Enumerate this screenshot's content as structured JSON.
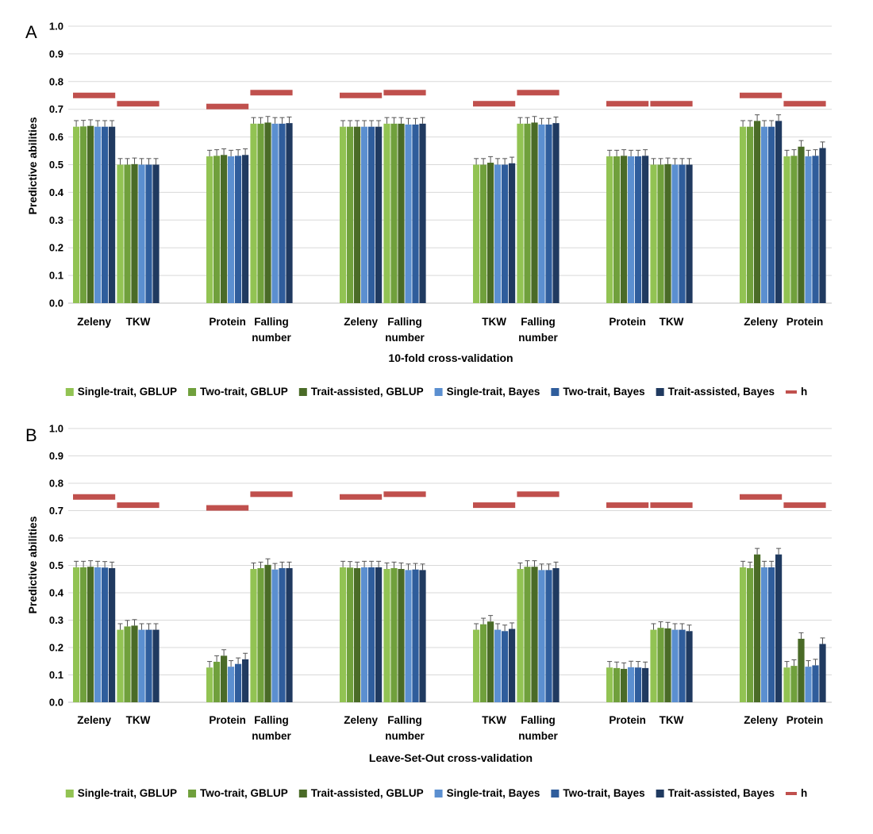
{
  "legend": {
    "entries": [
      {
        "label": "Single-trait, GBLUP",
        "color": "#92c353"
      },
      {
        "label": "Two-trait, GBLUP",
        "color": "#70a03c"
      },
      {
        "label": "Trait-assisted, GBLUP",
        "color": "#4a6b27"
      },
      {
        "label": "Single-trait, Bayes",
        "color": "#5b8fd0"
      },
      {
        "label": "Two-trait, Bayes",
        "color": "#2f5d9c"
      },
      {
        "label": "Trait-assisted, Bayes",
        "color": "#203a60"
      },
      {
        "label": "h",
        "color": "#c0504d"
      }
    ]
  },
  "chart_data": [
    {
      "type": "bar",
      "panel": "A",
      "xlabel": "10-fold cross-validation",
      "ylabel": "Predictive abilities",
      "ylim": [
        0,
        1.0
      ],
      "yticks": [
        "0.0",
        "0.1",
        "0.2",
        "0.3",
        "0.4",
        "0.5",
        "0.6",
        "0.7",
        "0.8",
        "0.9",
        "1.0"
      ],
      "grid": true,
      "legend_position": "bottom",
      "groups": [
        {
          "pair": [
            {
              "label": [
                "Zeleny"
              ],
              "values": [
                0.637,
                0.638,
                0.64,
                0.637,
                0.637,
                0.637
              ],
              "h": 0.75
            },
            {
              "label": [
                "TKW"
              ],
              "values": [
                0.5,
                0.5,
                0.502,
                0.5,
                0.5,
                0.5
              ],
              "h": 0.72
            }
          ]
        },
        {
          "pair": [
            {
              "label": [
                "Protein"
              ],
              "values": [
                0.53,
                0.532,
                0.535,
                0.53,
                0.532,
                0.535
              ],
              "h": 0.71
            },
            {
              "label": [
                "Falling",
                "number"
              ],
              "values": [
                0.648,
                0.648,
                0.652,
                0.648,
                0.648,
                0.65
              ],
              "h": 0.76
            }
          ]
        },
        {
          "pair": [
            {
              "label": [
                "Zeleny"
              ],
              "values": [
                0.637,
                0.637,
                0.637,
                0.637,
                0.637,
                0.637
              ],
              "h": 0.75
            },
            {
              "label": [
                "Falling",
                "number"
              ],
              "values": [
                0.648,
                0.648,
                0.648,
                0.645,
                0.645,
                0.648
              ],
              "h": 0.76
            }
          ]
        },
        {
          "pair": [
            {
              "label": [
                "TKW"
              ],
              "values": [
                0.5,
                0.5,
                0.507,
                0.5,
                0.5,
                0.505
              ],
              "h": 0.72
            },
            {
              "label": [
                "Falling",
                "number"
              ],
              "values": [
                0.648,
                0.648,
                0.652,
                0.645,
                0.645,
                0.65
              ],
              "h": 0.76
            }
          ]
        },
        {
          "pair": [
            {
              "label": [
                "Protein"
              ],
              "values": [
                0.53,
                0.53,
                0.532,
                0.53,
                0.53,
                0.532
              ],
              "h": 0.72
            },
            {
              "label": [
                "TKW"
              ],
              "values": [
                0.5,
                0.5,
                0.502,
                0.5,
                0.5,
                0.5
              ],
              "h": 0.72
            }
          ]
        },
        {
          "pair": [
            {
              "label": [
                "Zeleny"
              ],
              "values": [
                0.637,
                0.637,
                0.658,
                0.637,
                0.637,
                0.658
              ],
              "h": 0.75
            },
            {
              "label": [
                "Protein"
              ],
              "values": [
                0.53,
                0.532,
                0.565,
                0.53,
                0.532,
                0.56
              ],
              "h": 0.72
            }
          ]
        }
      ]
    },
    {
      "type": "bar",
      "panel": "B",
      "xlabel": "Leave-Set-Out cross-validation",
      "ylabel": "Predictive abilities",
      "ylim": [
        0,
        1.0
      ],
      "yticks": [
        "0.0",
        "0.1",
        "0.2",
        "0.3",
        "0.4",
        "0.5",
        "0.6",
        "0.7",
        "0.8",
        "0.9",
        "1.0"
      ],
      "grid": true,
      "legend_position": "bottom",
      "groups": [
        {
          "pair": [
            {
              "label": [
                "Zeleny"
              ],
              "values": [
                0.493,
                0.493,
                0.495,
                0.493,
                0.492,
                0.49
              ],
              "h": 0.75
            },
            {
              "label": [
                "TKW"
              ],
              "values": [
                0.265,
                0.277,
                0.28,
                0.265,
                0.265,
                0.265
              ],
              "h": 0.72
            }
          ]
        },
        {
          "pair": [
            {
              "label": [
                "Protein"
              ],
              "values": [
                0.127,
                0.148,
                0.17,
                0.13,
                0.14,
                0.157
              ],
              "h": 0.71
            },
            {
              "label": [
                "Falling",
                "number"
              ],
              "values": [
                0.487,
                0.49,
                0.502,
                0.485,
                0.49,
                0.49
              ],
              "h": 0.76
            }
          ]
        },
        {
          "pair": [
            {
              "label": [
                "Zeleny"
              ],
              "values": [
                0.493,
                0.492,
                0.49,
                0.493,
                0.493,
                0.493
              ],
              "h": 0.75
            },
            {
              "label": [
                "Falling",
                "number"
              ],
              "values": [
                0.487,
                0.49,
                0.487,
                0.483,
                0.485,
                0.483
              ],
              "h": 0.76
            }
          ]
        },
        {
          "pair": [
            {
              "label": [
                "TKW"
              ],
              "values": [
                0.265,
                0.285,
                0.295,
                0.265,
                0.26,
                0.268
              ],
              "h": 0.72
            },
            {
              "label": [
                "Falling",
                "number"
              ],
              "values": [
                0.487,
                0.495,
                0.495,
                0.483,
                0.483,
                0.49
              ],
              "h": 0.76
            }
          ]
        },
        {
          "pair": [
            {
              "label": [
                "Protein"
              ],
              "values": [
                0.127,
                0.125,
                0.122,
                0.128,
                0.127,
                0.125
              ],
              "h": 0.72
            },
            {
              "label": [
                "TKW"
              ],
              "values": [
                0.265,
                0.272,
                0.27,
                0.265,
                0.265,
                0.26
              ],
              "h": 0.72
            }
          ]
        },
        {
          "pair": [
            {
              "label": [
                "Zeleny"
              ],
              "values": [
                0.493,
                0.49,
                0.54,
                0.493,
                0.493,
                0.54
              ],
              "h": 0.75
            },
            {
              "label": [
                "Protein"
              ],
              "values": [
                0.127,
                0.133,
                0.232,
                0.13,
                0.135,
                0.213
              ],
              "h": 0.72
            }
          ]
        }
      ]
    }
  ]
}
